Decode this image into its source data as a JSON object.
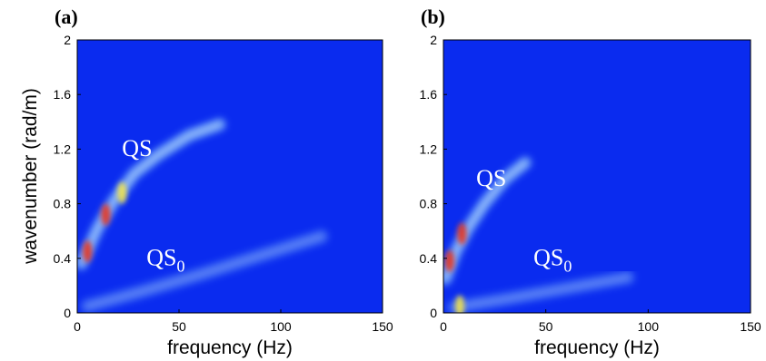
{
  "chart_data": [
    {
      "type": "heatmap",
      "panel_label": "(a)",
      "xlabel": "frequency (Hz)",
      "ylabel": "wavenumber (rad/m)",
      "xlim": [
        0,
        150
      ],
      "ylim": [
        0,
        2
      ],
      "xticks": [
        "0",
        "50",
        "100",
        "150"
      ],
      "yticks": [
        "0",
        "0.4",
        "0.8",
        "1.2",
        "1.6",
        "2"
      ],
      "colormap": "jet",
      "background_color": "#0a2bef",
      "annotations": [
        {
          "text": "QS",
          "subscript": "",
          "x": 22,
          "y": 1.15
        },
        {
          "text": "QS",
          "subscript": "0",
          "x": 34,
          "y": 0.35
        }
      ],
      "ridges": [
        {
          "name": "QS",
          "points": [
            [
              2,
              0.36
            ],
            [
              10,
              0.62
            ],
            [
              18,
              0.82
            ],
            [
              28,
              1.02
            ],
            [
              40,
              1.16
            ],
            [
              55,
              1.3
            ],
            [
              70,
              1.38
            ]
          ]
        },
        {
          "name": "QS0",
          "points": [
            [
              5,
              0.05
            ],
            [
              30,
              0.15
            ],
            [
              60,
              0.28
            ],
            [
              90,
              0.42
            ],
            [
              120,
              0.56
            ]
          ]
        }
      ],
      "hotspots": [
        {
          "x": 5,
          "y": 0.45,
          "level": "red"
        },
        {
          "x": 14,
          "y": 0.72,
          "level": "red"
        },
        {
          "x": 22,
          "y": 0.88,
          "level": "yellow"
        }
      ]
    },
    {
      "type": "heatmap",
      "panel_label": "(b)",
      "xlabel": "frequency (Hz)",
      "ylabel": "",
      "xlim": [
        0,
        150
      ],
      "ylim": [
        0,
        2
      ],
      "xticks": [
        "0",
        "50",
        "100",
        "150"
      ],
      "yticks": [
        "0",
        "0.4",
        "0.8",
        "1.2",
        "1.6",
        "2"
      ],
      "colormap": "jet",
      "background_color": "#0a2bef",
      "annotations": [
        {
          "text": "QS",
          "subscript": "",
          "x": 16,
          "y": 0.93
        },
        {
          "text": "QS",
          "subscript": "0",
          "x": 44,
          "y": 0.35
        }
      ],
      "ridges": [
        {
          "name": "QS",
          "points": [
            [
              1,
              0.25
            ],
            [
              6,
              0.45
            ],
            [
              12,
              0.62
            ],
            [
              20,
              0.8
            ],
            [
              30,
              0.98
            ],
            [
              40,
              1.1
            ]
          ]
        },
        {
          "name": "QS0",
          "points": [
            [
              5,
              0.04
            ],
            [
              30,
              0.1
            ],
            [
              60,
              0.18
            ],
            [
              90,
              0.26
            ]
          ]
        }
      ],
      "hotspots": [
        {
          "x": 3,
          "y": 0.38,
          "level": "red"
        },
        {
          "x": 9,
          "y": 0.58,
          "level": "red"
        },
        {
          "x": 8,
          "y": 0.05,
          "level": "yellow"
        }
      ]
    }
  ]
}
